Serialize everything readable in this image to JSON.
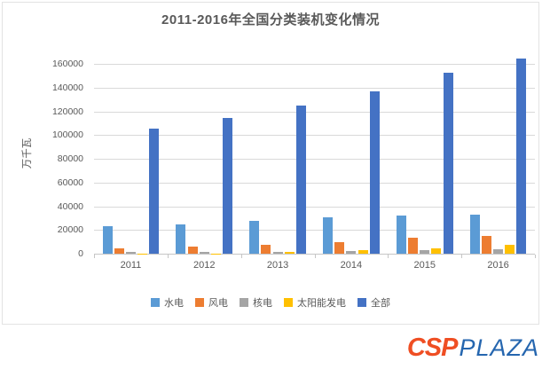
{
  "chart_data": {
    "type": "bar",
    "title": "2011-2016年全国分类装机变化情况",
    "xlabel": "",
    "ylabel": "万千瓦",
    "categories": [
      "2011",
      "2012",
      "2013",
      "2014",
      "2015",
      "2016"
    ],
    "series": [
      {
        "name": "水电",
        "color": "#5B9BD5",
        "values": [
          23300,
          24900,
          28000,
          30500,
          32000,
          33200
        ]
      },
      {
        "name": "风电",
        "color": "#ED7D31",
        "values": [
          4600,
          6100,
          7700,
          9700,
          13100,
          14900
        ]
      },
      {
        "name": "核电",
        "color": "#A5A5A5",
        "values": [
          1300,
          1300,
          1500,
          2000,
          2700,
          3400
        ]
      },
      {
        "name": "太阳能发电",
        "color": "#FFC000",
        "values": [
          200,
          300,
          1600,
          2800,
          4300,
          7700
        ]
      },
      {
        "name": "全部",
        "color": "#4472C4",
        "values": [
          105600,
          114700,
          124700,
          137000,
          152500,
          164600
        ]
      }
    ],
    "ylim": [
      0,
      160000
    ],
    "yticks": [
      0,
      20000,
      40000,
      60000,
      80000,
      100000,
      120000,
      140000,
      160000
    ],
    "grid": true,
    "legend_position": "bottom"
  },
  "footer": {
    "logo_primary": "CSP",
    "logo_secondary": "PLAZA",
    "logo_primary_color": "#EF4E23",
    "logo_secondary_color": "#2566AF"
  }
}
